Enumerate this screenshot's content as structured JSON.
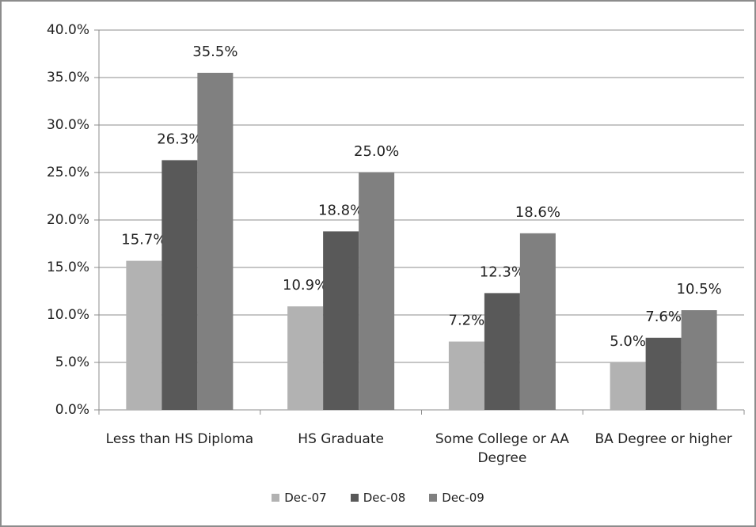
{
  "chart_data": {
    "type": "bar",
    "categories": [
      "Less than HS Diploma",
      "HS Graduate",
      "Some College or AA Degree",
      "BA Degree or higher"
    ],
    "series": [
      {
        "name": "Dec-07",
        "color": "#b2b2b2",
        "values": [
          15.7,
          10.9,
          7.2,
          5.0
        ],
        "value_labels": [
          "15.7%",
          "10.9%",
          "7.2%",
          "5.0%"
        ]
      },
      {
        "name": "Dec-08",
        "color": "#595959",
        "values": [
          26.3,
          18.8,
          12.3,
          7.6
        ],
        "value_labels": [
          "26.3%",
          "18.8%",
          "12.3%",
          "7.6%"
        ]
      },
      {
        "name": "Dec-09",
        "color": "#808080",
        "values": [
          35.5,
          25.0,
          18.6,
          10.5
        ],
        "value_labels": [
          "35.5%",
          "25.0%",
          "18.6%",
          "10.5%"
        ]
      }
    ],
    "ylim": [
      0,
      40
    ],
    "yticks": [
      {
        "value": 0,
        "label": "0.0%"
      },
      {
        "value": 5,
        "label": "5.0%"
      },
      {
        "value": 10,
        "label": "10.0%"
      },
      {
        "value": 15,
        "label": "15.0%"
      },
      {
        "value": 20,
        "label": "20.0%"
      },
      {
        "value": 25,
        "label": "25.0%"
      },
      {
        "value": 30,
        "label": "30.0%"
      },
      {
        "value": 35,
        "label": "35.0%"
      },
      {
        "value": 40,
        "label": "40.0%"
      }
    ],
    "grid": true,
    "legend": "bottom"
  }
}
